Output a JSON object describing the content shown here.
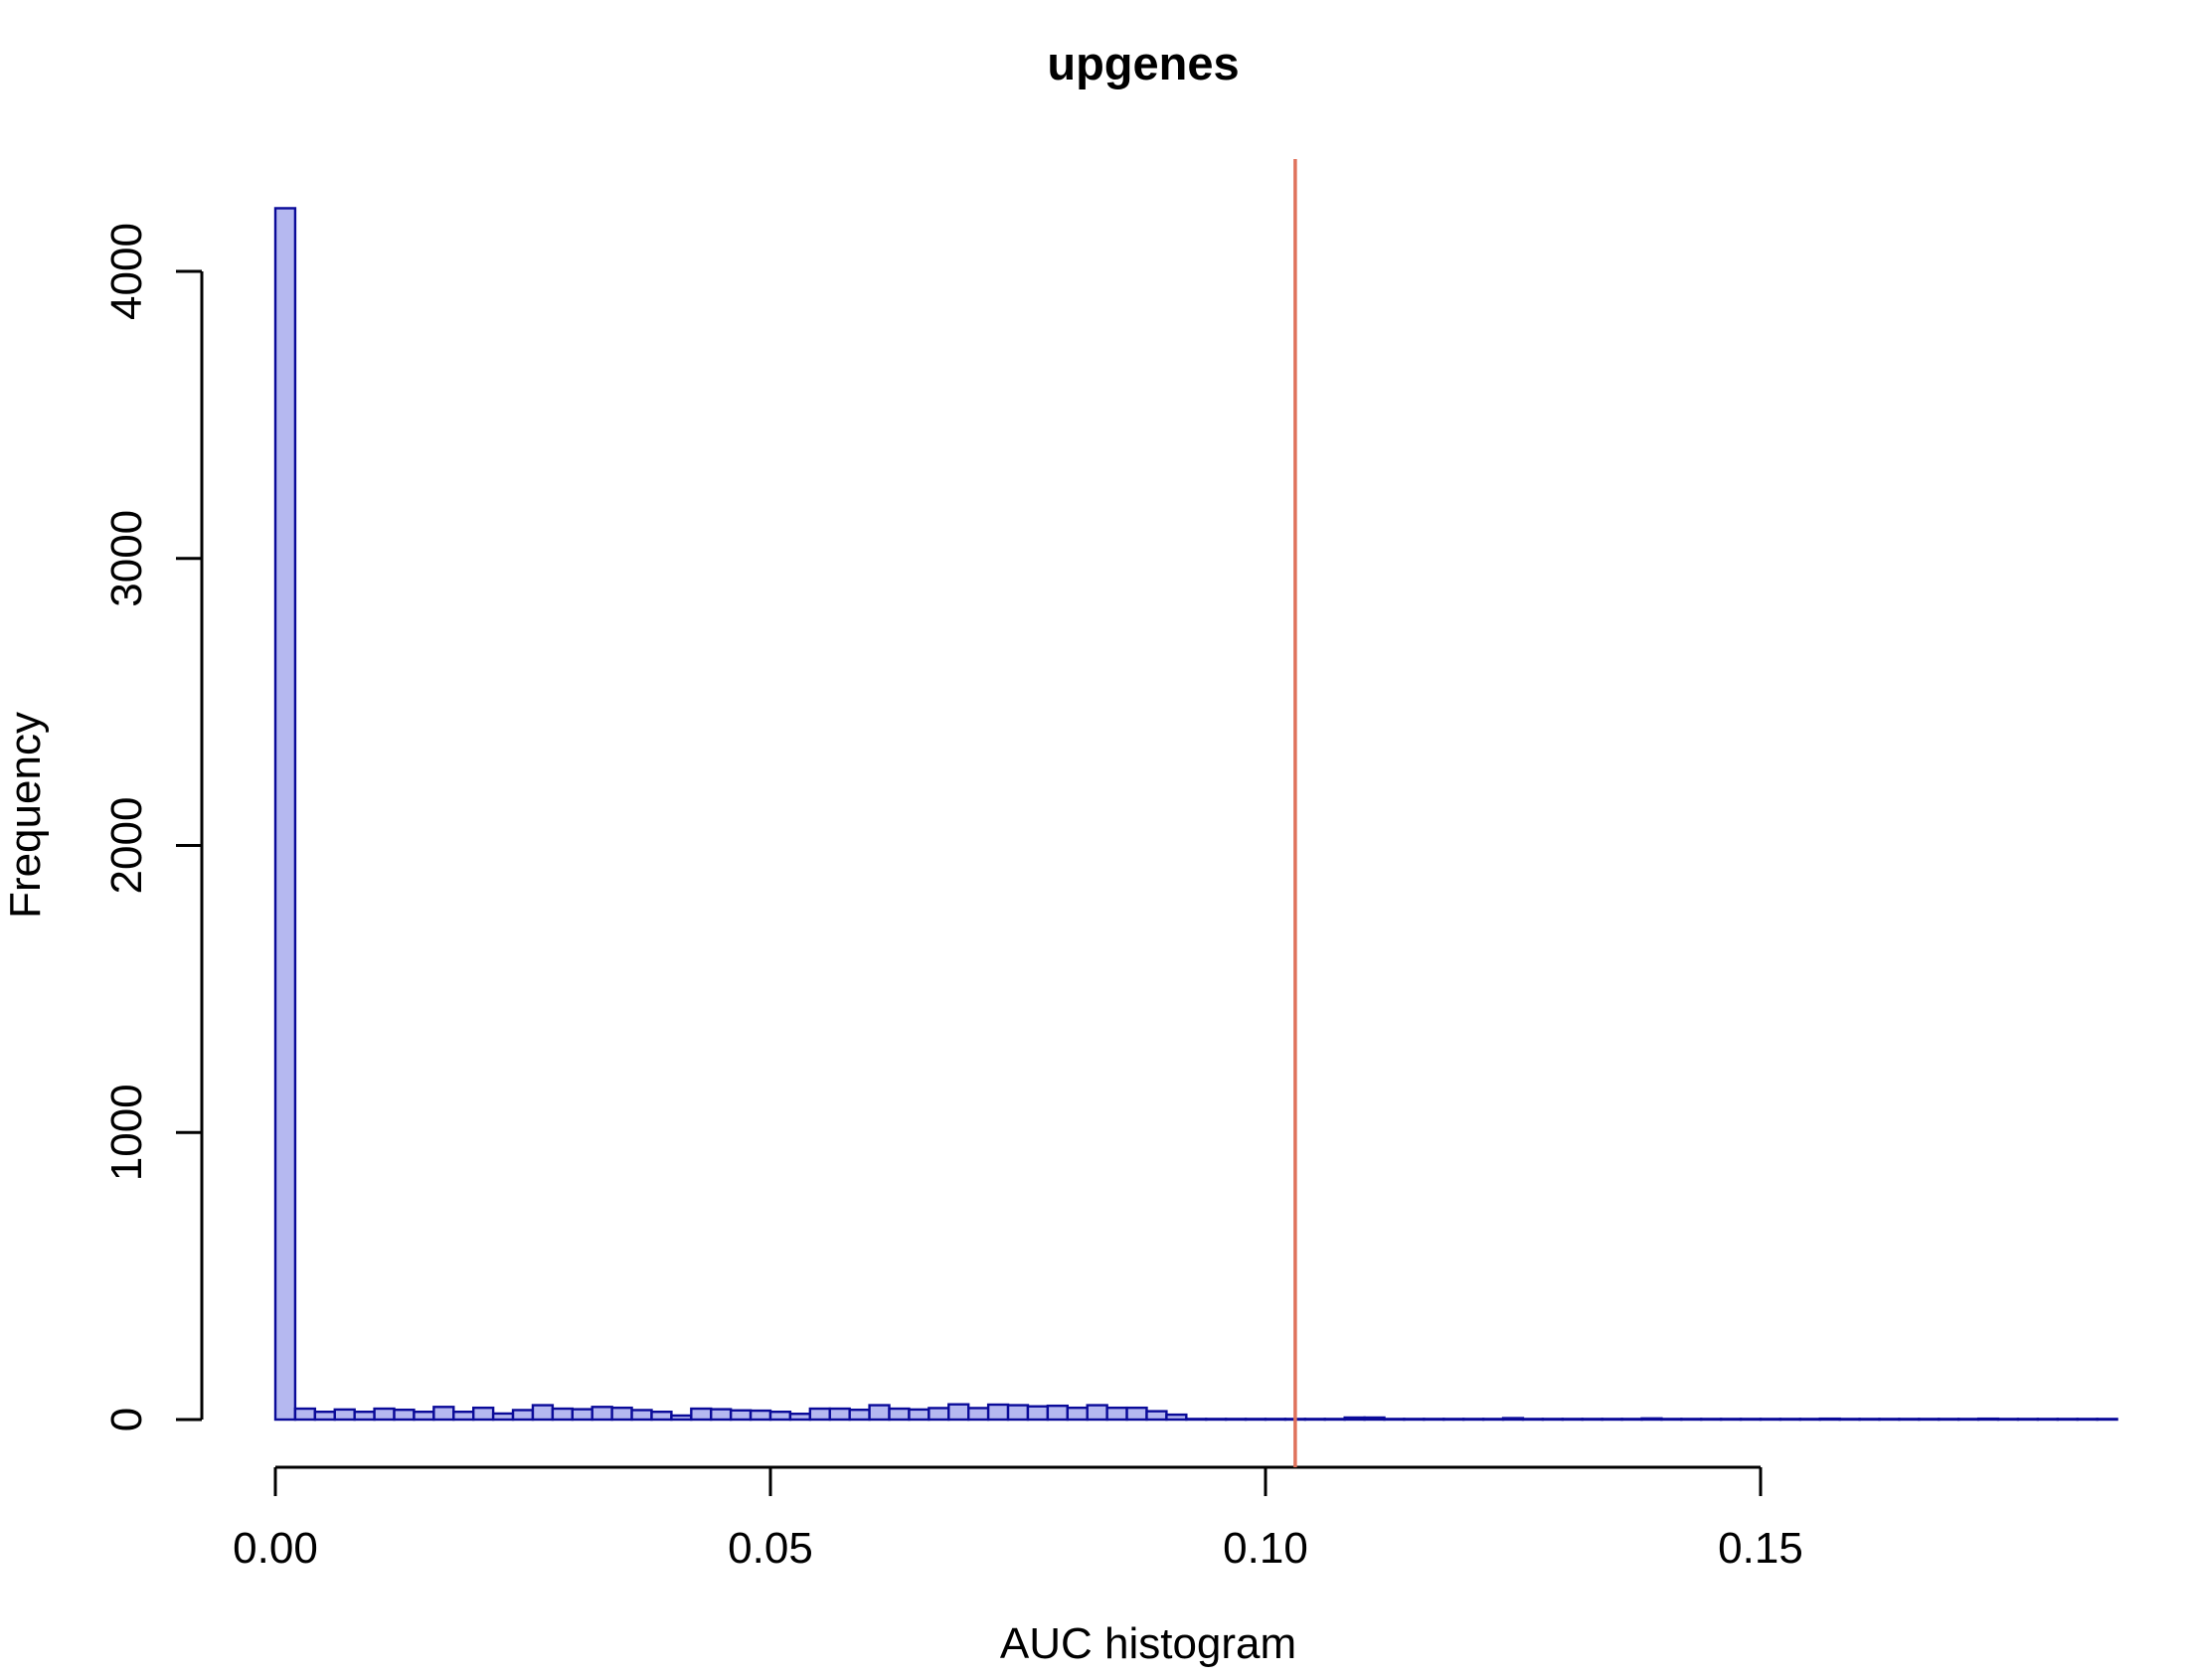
{
  "chart_data": {
    "type": "bar",
    "subtype": "histogram",
    "title": "upgenes",
    "xlabel": "AUC histogram",
    "ylabel": "Frequency",
    "bin_start": 0,
    "bin_width": 0.002,
    "counts": [
      4220,
      38,
      27,
      35,
      27,
      38,
      34,
      27,
      44,
      27,
      41,
      21,
      33,
      50,
      38,
      36,
      44,
      41,
      33,
      27,
      14,
      38,
      36,
      32,
      31,
      27,
      20,
      38,
      38,
      34,
      50,
      38,
      35,
      40,
      53,
      40,
      52,
      50,
      46,
      48,
      41,
      50,
      41,
      41,
      29,
      17,
      2,
      2,
      1,
      2,
      1,
      2,
      2,
      1,
      7,
      7,
      2,
      1,
      2,
      2,
      1,
      2,
      5,
      2,
      1,
      2,
      2,
      1,
      2,
      4,
      2,
      2,
      1,
      2,
      2,
      2,
      1,
      2,
      3,
      2,
      2,
      1,
      2,
      2,
      1,
      2,
      3,
      2,
      1,
      2,
      2,
      1,
      2
    ],
    "x_ticks": {
      "values": [
        0,
        0.05,
        0.1,
        0.15
      ],
      "labels": [
        "0.00",
        "0.05",
        "0.10",
        "0.15"
      ]
    },
    "y_ticks": {
      "values": [
        0,
        1000,
        2000,
        3000,
        4000
      ],
      "labels": [
        "0",
        "1000",
        "2000",
        "3000",
        "4000"
      ]
    },
    "xlim": [
      0,
      0.186
    ],
    "ylim": [
      0,
      4220
    ],
    "grid": "off",
    "legend": "none",
    "vline": {
      "x": 0.103,
      "color": "#e0725c"
    },
    "colors": {
      "bar_fill": "#b5b8f0",
      "bar_stroke": "#0a0a99",
      "axis": "#000000",
      "background": "#ffffff"
    }
  }
}
